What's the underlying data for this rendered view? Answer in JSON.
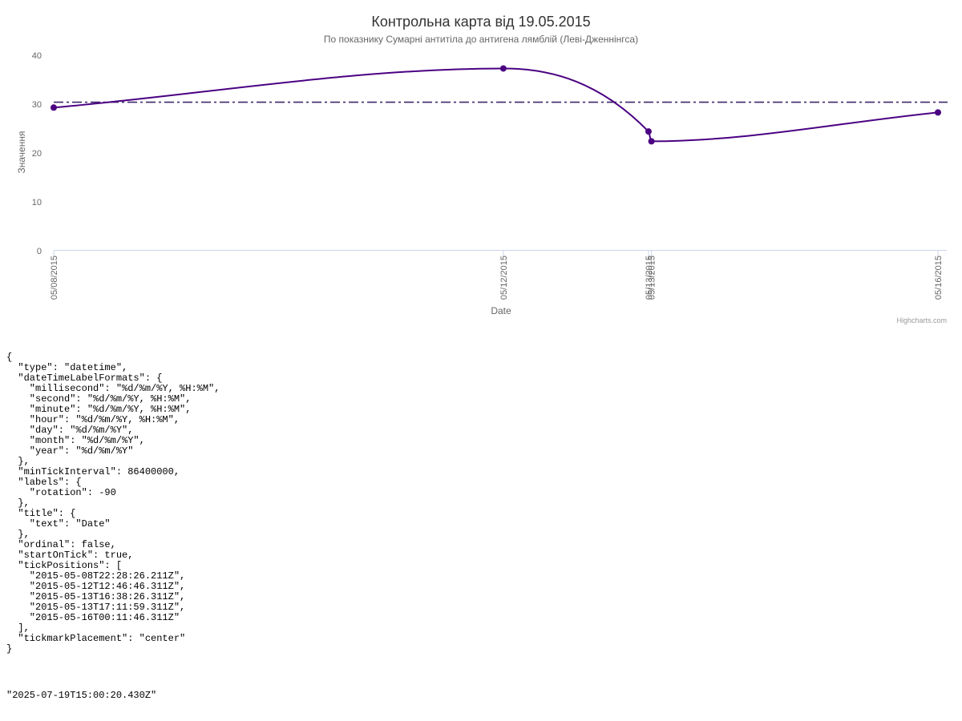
{
  "chart_data": {
    "type": "line",
    "title": "Контрольна карта від 19.05.2015",
    "subtitle": "По показнику Сумарні антитіла до антигена лямблій (Леві-Дженнінгса)",
    "xlabel": "Date",
    "ylabel": "Значення",
    "ylim": [
      0,
      40
    ],
    "yticks": [
      0,
      10,
      20,
      30,
      40
    ],
    "x_axis_type": "datetime",
    "x_tick_labels": [
      "05/08/2015",
      "05/12/2015",
      "05/13/2015",
      "05/13/2015",
      "05/16/2015"
    ],
    "series": [
      {
        "x": [
          "2015-05-08T22:28:26.211Z",
          "2015-05-12T12:46:46.311Z",
          "2015-05-13T16:38:26.311Z",
          "2015-05-13T17:11:59.311Z",
          "2015-05-16T00:11:46.311Z"
        ],
        "y": [
          29.3,
          37.3,
          24.4,
          22.4,
          28.3
        ],
        "color": "#4b0082"
      }
    ],
    "reference_line": {
      "value": 30.4,
      "style": "dash-dot",
      "color": "#3d2a6b"
    },
    "grid": false,
    "credits": "Highcharts.com"
  },
  "config_dump": "{\n  \"type\": \"datetime\",\n  \"dateTimeLabelFormats\": {\n    \"millisecond\": \"%d/%m/%Y, %H:%M\",\n    \"second\": \"%d/%m/%Y, %H:%M\",\n    \"minute\": \"%d/%m/%Y, %H:%M\",\n    \"hour\": \"%d/%m/%Y, %H:%M\",\n    \"day\": \"%d/%m/%Y\",\n    \"month\": \"%d/%m/%Y\",\n    \"year\": \"%d/%m/%Y\"\n  },\n  \"minTickInterval\": 86400000,\n  \"labels\": {\n    \"rotation\": -90\n  },\n  \"title\": {\n    \"text\": \"Date\"\n  },\n  \"ordinal\": false,\n  \"startOnTick\": true,\n  \"tickPositions\": [\n    \"2015-05-08T22:28:26.211Z\",\n    \"2015-05-12T12:46:46.311Z\",\n    \"2015-05-13T16:38:26.311Z\",\n    \"2015-05-13T17:11:59.311Z\",\n    \"2015-05-16T00:11:46.311Z\"\n  ],\n  \"tickmarkPlacement\": \"center\"\n}",
  "timestamp_dump": "\"2025-07-19T15:00:20.430Z\""
}
